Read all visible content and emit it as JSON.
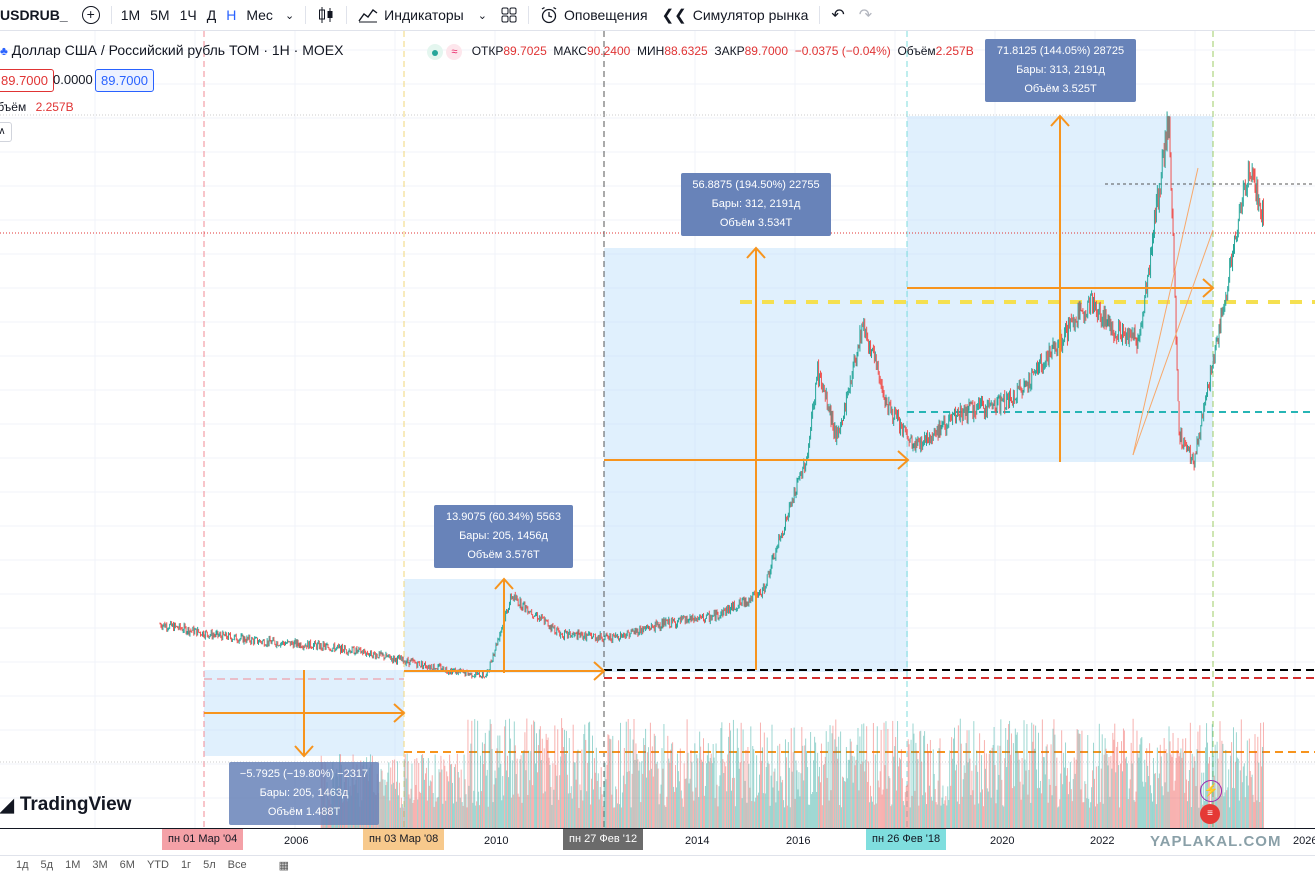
{
  "toolbar": {
    "symbol": "USDRUB_",
    "timeframes": [
      "1М",
      "5М",
      "1Ч",
      "Д",
      "Н",
      "Мес"
    ],
    "active_timeframe": "Н",
    "indicators_label": "Индикаторы",
    "alerts_label": "Оповещения",
    "replay_label": "Симулятор рынка"
  },
  "legend": {
    "title": "Доллар США / Российский рубль ТОМ · 1Н · MOEX",
    "open_label": "ОТКР",
    "open_value": "89.7025",
    "high_label": "МАКС",
    "high_value": "90.2400",
    "low_label": "МИН",
    "low_value": "88.6325",
    "close_label": "ЗАКР",
    "close_value": "89.7000",
    "change": "−0.0375 (−0.04%)",
    "volume_label": "Объём",
    "volume_value": "2.257B",
    "sell_price": "89.7000",
    "spread": "0.0000",
    "buy_price": "89.7000",
    "volume_row_label": "Объём",
    "volume_row_value": "2.257B"
  },
  "colors": {
    "accent": "#2962ff",
    "up": "#26a69a",
    "down": "#ef5350",
    "arrow": "#f7941d",
    "range_fill": "#bbdefb",
    "tooltip": "#6883b9"
  },
  "measurements": [
    {
      "line1": "−5.7925 (−19.80%) −2317",
      "line2": "Бары: 205, 1463д",
      "line3": "Объём 1.488T"
    },
    {
      "line1": "13.9075 (60.34%) 5563",
      "line2": "Бары: 205, 1456д",
      "line3": "Объём 3.576T"
    },
    {
      "line1": "56.8875 (194.50%) 22755",
      "line2": "Бары: 312, 2191д",
      "line3": "Объём 3.534T"
    },
    {
      "line1": "71.8125 (144.05%) 28725",
      "line2": "Бары: 313, 2191д",
      "line3": "Объём 3.525T"
    }
  ],
  "xaxis": {
    "labels": [
      "2006",
      "2010",
      "2014",
      "2016",
      "2020",
      "2022",
      "2026"
    ],
    "markers": [
      "пн 01 Мар '04",
      "пн 03 Мар '08",
      "пн 27 Фев '12",
      "пн 26 Фев '18"
    ]
  },
  "brand": "TradingView",
  "watermark": "YAPLAKAL.COM",
  "bottombar": [
    "1д",
    "5д",
    "1М",
    "3М",
    "6М",
    "YTD",
    "1г",
    "5л",
    "Все"
  ],
  "chart_data": {
    "type": "candlestick",
    "series": [
      {
        "name": "USDRUB_",
        "x": [
          "2002",
          "2003",
          "2004",
          "2005",
          "2006",
          "2007",
          "2008",
          "2008.5",
          "2009",
          "2010",
          "2011",
          "2012",
          "2013",
          "2014",
          "2014.9",
          "2015.1",
          "2015.5",
          "2016",
          "2016.5",
          "2017",
          "2018",
          "2019",
          "2020",
          "2020.5",
          "2021",
          "2021.5",
          "2022.1",
          "2022.3",
          "2022.6",
          "2023",
          "2023.5",
          "2023.7",
          "2024"
        ],
        "values": [
          31.5,
          30.0,
          29.0,
          28.5,
          27.5,
          26.0,
          24.5,
          24.0,
          35.5,
          30.0,
          29.5,
          31.5,
          32.5,
          36.0,
          56.0,
          68.0,
          58.0,
          75.0,
          63.0,
          57.0,
          62.0,
          64.0,
          73.0,
          78.0,
          74.0,
          72.5,
          104.5,
          59.0,
          55.0,
          70.0,
          90.0,
          98.0,
          89.7
        ]
      }
    ]
  }
}
